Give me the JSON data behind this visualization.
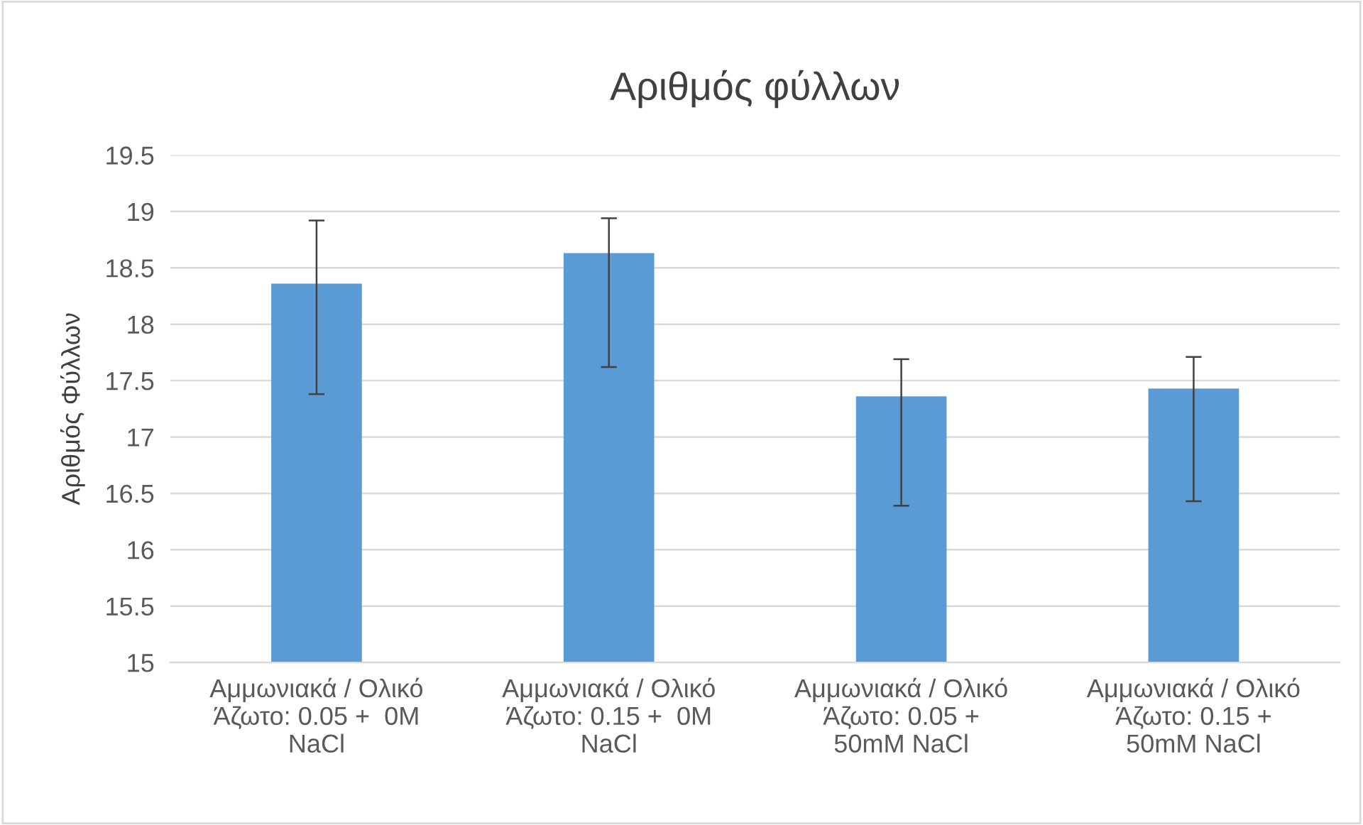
{
  "chart_data": {
    "type": "bar",
    "title": "Αριθμός φύλλων",
    "ylabel": "Αριθμός Φύλλων",
    "categories": [
      "Αμμωνιακά / Ολικό\nΆζωτο: 0.05 +  0M\nNaCl",
      "Αμμωνιακά / Ολικό\nΆζωτο: 0.15 +  0M\nNaCl",
      "Αμμωνιακά / Ολικό\nΆζωτο: 0.05 +\n50mM NaCl",
      "Αμμωνιακά / Ολικό\nΆζωτο: 0.15 +\n50mM NaCl"
    ],
    "values": [
      18.36,
      18.63,
      17.36,
      17.43
    ],
    "errors": [
      [
        17.38,
        18.92
      ],
      [
        17.62,
        18.94
      ],
      [
        16.39,
        17.69
      ],
      [
        16.43,
        17.71
      ]
    ],
    "color": "#5b9bd5",
    "ylim": [
      15,
      19.5
    ],
    "yticks": [
      15,
      15.5,
      16,
      16.5,
      17,
      17.5,
      18,
      18.5,
      19,
      19.5
    ],
    "grid": "y"
  }
}
